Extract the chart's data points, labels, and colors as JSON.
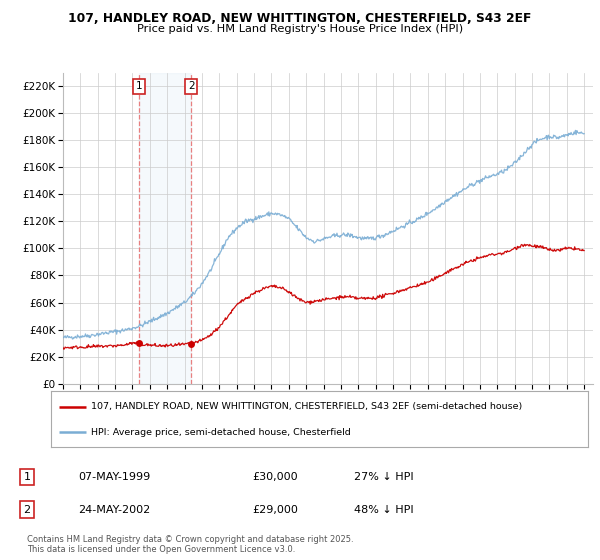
{
  "title_line1": "107, HANDLEY ROAD, NEW WHITTINGTON, CHESTERFIELD, S43 2EF",
  "title_line2": "Price paid vs. HM Land Registry's House Price Index (HPI)",
  "ylim": [
    0,
    230000
  ],
  "yticks": [
    0,
    20000,
    40000,
    60000,
    80000,
    100000,
    120000,
    140000,
    160000,
    180000,
    200000,
    220000
  ],
  "ytick_labels": [
    "£0",
    "£20K",
    "£40K",
    "£60K",
    "£80K",
    "£100K",
    "£120K",
    "£140K",
    "£160K",
    "£180K",
    "£200K",
    "£220K"
  ],
  "legend_label_red": "107, HANDLEY ROAD, NEW WHITTINGTON, CHESTERFIELD, S43 2EF (semi-detached house)",
  "legend_label_blue": "HPI: Average price, semi-detached house, Chesterfield",
  "sale1_date": "07-MAY-1999",
  "sale1_price": "£30,000",
  "sale1_hpi": "27% ↓ HPI",
  "sale1_x": 1999.37,
  "sale1_y": 30000,
  "sale2_date": "24-MAY-2002",
  "sale2_price": "£29,000",
  "sale2_hpi": "48% ↓ HPI",
  "sale2_x": 2002.39,
  "sale2_y": 29000,
  "line_color_red": "#cc0000",
  "line_color_blue": "#7aadd4",
  "vline_color": "#e88080",
  "shade_color": "#d8e8f5",
  "bg_color": "#ffffff",
  "grid_color": "#cccccc",
  "footer_text": "Contains HM Land Registry data © Crown copyright and database right 2025.\nThis data is licensed under the Open Government Licence v3.0.",
  "xmin": 1995.0,
  "xmax": 2025.5,
  "hpi_years": [
    1995.0,
    1995.5,
    1996.0,
    1996.5,
    1997.0,
    1997.5,
    1998.0,
    1998.5,
    1999.0,
    1999.5,
    2000.0,
    2000.5,
    2001.0,
    2001.5,
    2002.0,
    2002.5,
    2003.0,
    2003.5,
    2004.0,
    2004.5,
    2005.0,
    2005.5,
    2006.0,
    2006.5,
    2007.0,
    2007.5,
    2008.0,
    2008.5,
    2009.0,
    2009.5,
    2010.0,
    2010.5,
    2011.0,
    2011.5,
    2012.0,
    2012.5,
    2013.0,
    2013.5,
    2014.0,
    2014.5,
    2015.0,
    2015.5,
    2016.0,
    2016.5,
    2017.0,
    2017.5,
    2018.0,
    2018.5,
    2019.0,
    2019.5,
    2020.0,
    2020.5,
    2021.0,
    2021.5,
    2022.0,
    2022.5,
    2023.0,
    2023.5,
    2024.0,
    2024.5,
    2025.0
  ],
  "hpi_vals": [
    34000,
    34500,
    35000,
    35500,
    36500,
    37500,
    38500,
    39500,
    41000,
    43000,
    46000,
    49000,
    52000,
    56000,
    60000,
    66000,
    74000,
    84000,
    96000,
    108000,
    115000,
    120000,
    122000,
    124000,
    126000,
    125000,
    122000,
    115000,
    108000,
    105000,
    107000,
    109000,
    110000,
    110000,
    108000,
    107000,
    108000,
    110000,
    113000,
    116000,
    119000,
    122000,
    126000,
    130000,
    135000,
    139000,
    143000,
    147000,
    150000,
    153000,
    155000,
    158000,
    163000,
    170000,
    177000,
    181000,
    183000,
    182000,
    184000,
    186000,
    185000
  ],
  "red_years": [
    1995.0,
    1995.5,
    1996.0,
    1996.5,
    1997.0,
    1997.5,
    1998.0,
    1998.5,
    1999.0,
    1999.5,
    2000.0,
    2000.5,
    2001.0,
    2001.5,
    2002.0,
    2002.5,
    2003.0,
    2003.5,
    2004.0,
    2004.5,
    2005.0,
    2005.5,
    2006.0,
    2006.5,
    2007.0,
    2007.5,
    2008.0,
    2008.5,
    2009.0,
    2009.5,
    2010.0,
    2010.5,
    2011.0,
    2011.5,
    2012.0,
    2012.5,
    2013.0,
    2013.5,
    2014.0,
    2014.5,
    2015.0,
    2015.5,
    2016.0,
    2016.5,
    2017.0,
    2017.5,
    2018.0,
    2018.5,
    2019.0,
    2019.5,
    2020.0,
    2020.5,
    2021.0,
    2021.5,
    2022.0,
    2022.5,
    2023.0,
    2023.5,
    2024.0,
    2024.5,
    2025.0
  ],
  "red_vals": [
    26500,
    26800,
    27000,
    27200,
    27500,
    27800,
    28000,
    28500,
    30000,
    29000,
    28500,
    28000,
    28000,
    28500,
    29000,
    30000,
    32000,
    36000,
    42000,
    50000,
    58000,
    63000,
    67000,
    70000,
    72000,
    71000,
    68000,
    63000,
    60000,
    61000,
    62000,
    63000,
    64000,
    64000,
    63000,
    63000,
    63500,
    65000,
    67000,
    69000,
    71000,
    73000,
    75000,
    78000,
    82000,
    85000,
    88000,
    91000,
    93000,
    95000,
    96000,
    97000,
    100000,
    103000,
    102000,
    101000,
    99000,
    98500,
    100000,
    100000,
    98000
  ]
}
